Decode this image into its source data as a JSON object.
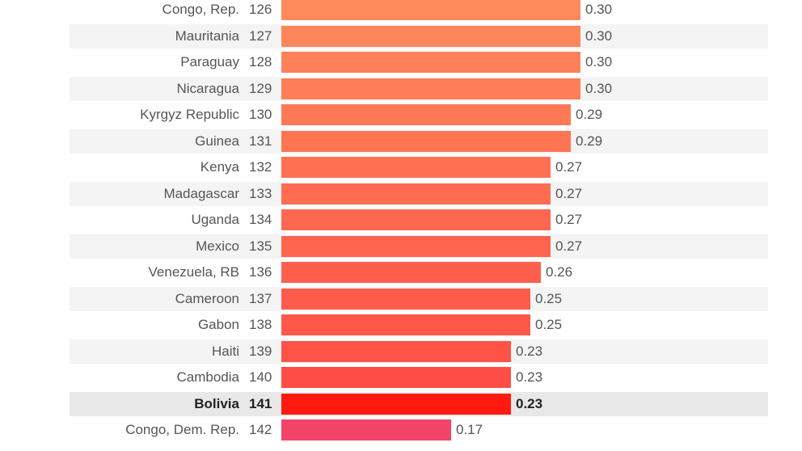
{
  "chart_data": {
    "type": "bar",
    "orientation": "horizontal",
    "title": "",
    "xlabel": "",
    "ylabel": "",
    "xlim": [
      0,
      0.3
    ],
    "grid": false,
    "legend": "none",
    "highlight": "Bolivia",
    "rows": [
      {
        "country": "Congo, Rep.",
        "rank": "126",
        "value": 0.3,
        "value_label": "0.30"
      },
      {
        "country": "Mauritania",
        "rank": "127",
        "value": 0.3,
        "value_label": "0.30"
      },
      {
        "country": "Paraguay",
        "rank": "128",
        "value": 0.3,
        "value_label": "0.30"
      },
      {
        "country": "Nicaragua",
        "rank": "129",
        "value": 0.3,
        "value_label": "0.30"
      },
      {
        "country": "Kyrgyz Republic",
        "rank": "130",
        "value": 0.29,
        "value_label": "0.29"
      },
      {
        "country": "Guinea",
        "rank": "131",
        "value": 0.29,
        "value_label": "0.29"
      },
      {
        "country": "Kenya",
        "rank": "132",
        "value": 0.27,
        "value_label": "0.27"
      },
      {
        "country": "Madagascar",
        "rank": "133",
        "value": 0.27,
        "value_label": "0.27"
      },
      {
        "country": "Uganda",
        "rank": "134",
        "value": 0.27,
        "value_label": "0.27"
      },
      {
        "country": "Mexico",
        "rank": "135",
        "value": 0.27,
        "value_label": "0.27"
      },
      {
        "country": "Venezuela, RB",
        "rank": "136",
        "value": 0.26,
        "value_label": "0.26"
      },
      {
        "country": "Cameroon",
        "rank": "137",
        "value": 0.25,
        "value_label": "0.25"
      },
      {
        "country": "Gabon",
        "rank": "138",
        "value": 0.25,
        "value_label": "0.25"
      },
      {
        "country": "Haiti",
        "rank": "139",
        "value": 0.23,
        "value_label": "0.23"
      },
      {
        "country": "Cambodia",
        "rank": "140",
        "value": 0.23,
        "value_label": "0.23"
      },
      {
        "country": "Bolivia",
        "rank": "141",
        "value": 0.23,
        "value_label": "0.23"
      },
      {
        "country": "Congo, Dem. Rep.",
        "rank": "142",
        "value": 0.17,
        "value_label": "0.17"
      }
    ]
  },
  "colors": {
    "row_stripe": "#f4f4f4",
    "row_plain": "#ffffff",
    "highlight_row_bg": "#e8e8e8",
    "bar_start": "#ff8a5c",
    "bar_end": "#ff4a45",
    "highlight_bar": "#ff1a10",
    "lowest_bar": "#f24468"
  }
}
